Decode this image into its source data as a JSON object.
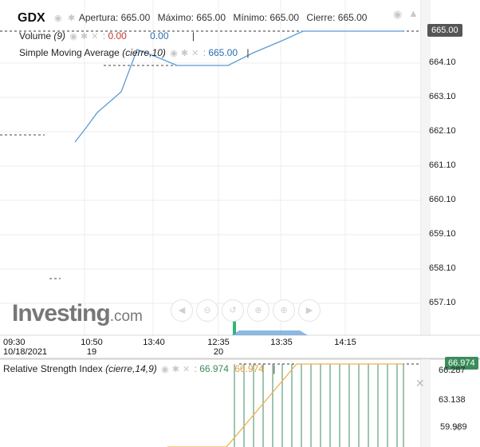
{
  "header": {
    "symbol": "GDX",
    "stats": [
      {
        "label": "Apertura:",
        "value": "665.00"
      },
      {
        "label": "Máximo:",
        "value": "665.00"
      },
      {
        "label": "Mínimo:",
        "value": "665.00"
      },
      {
        "label": "Cierre:",
        "value": "665.00"
      }
    ]
  },
  "indicators": {
    "volume": {
      "name": "Volume",
      "params": "(9)",
      "value1": "0.00",
      "value2": "0.00"
    },
    "sma": {
      "name": "Simple Moving Average",
      "params": "(cierre,10)",
      "value": "665.00"
    },
    "rsi": {
      "name": "Relative Strength Index",
      "params": "(cierre,14,9)",
      "value1": "66.974",
      "value2": "66.974"
    }
  },
  "price_axis": {
    "current": "665.00",
    "ticks": [
      "664.10",
      "663.10",
      "662.10",
      "661.10",
      "660.10",
      "659.10",
      "658.10",
      "657.10"
    ]
  },
  "time_axis": [
    {
      "time": "09:30",
      "date": "10/18/2021"
    },
    {
      "time": "10:50",
      "date": "19"
    },
    {
      "time": "13:40",
      "date": ""
    },
    {
      "time": "12:35",
      "date": "20"
    },
    {
      "time": "13:35",
      "date": ""
    },
    {
      "time": "14:15",
      "date": ""
    }
  ],
  "rsi_axis": {
    "current": "66.974",
    "ticks": [
      "66.287",
      "63.138",
      "59.989"
    ]
  },
  "logo": {
    "brand": "Investing",
    "suffix": ".com"
  },
  "colors": {
    "price_line": "#5b9bd5",
    "rsi_line": "#f0b050",
    "volume_bar": "#2eb872",
    "rsi_bars": "#3c8c5c"
  },
  "nav_icons": [
    "arrow-left-icon",
    "zoom-out-icon",
    "reset-icon",
    "zoom-in-icon",
    "zoom-in-plus-icon",
    "arrow-right-icon"
  ]
}
